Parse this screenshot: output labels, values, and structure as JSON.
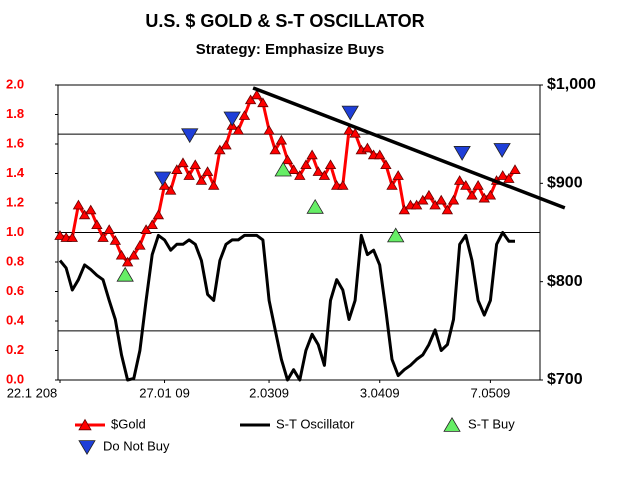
{
  "chart_data": {
    "type": "line",
    "title": "U.S. $ GOLD & S-T OSCILLATOR",
    "subtitle": "Strategy: Emphasize Buys",
    "x": [
      0,
      1,
      2,
      3,
      4,
      5,
      6,
      7,
      8,
      9,
      10,
      11,
      12,
      13,
      14,
      15,
      16,
      17,
      18,
      19,
      20,
      21,
      22,
      23,
      24,
      25,
      26,
      27,
      28,
      29,
      30,
      31,
      32,
      33,
      34,
      35,
      36,
      37,
      38,
      39,
      40,
      41,
      42,
      43,
      44,
      45,
      46,
      47,
      48,
      49,
      50,
      51,
      52,
      53,
      54,
      55,
      56,
      57,
      58,
      59,
      60,
      61,
      62,
      63,
      64,
      65,
      66,
      67,
      68,
      69,
      70,
      71,
      72,
      73,
      74
    ],
    "xlim": [
      0,
      74
    ],
    "xticks": [
      {
        "value": 0,
        "label": "22.1 208"
      },
      {
        "value": 17,
        "label": "27.01 09"
      },
      {
        "value": 34,
        "label": "2.0309"
      },
      {
        "value": 52,
        "label": "3.0409"
      },
      {
        "value": 70,
        "label": "7.0509"
      }
    ],
    "ylim": [
      0,
      2
    ],
    "yticks": [
      {
        "value": 0,
        "label": "0.0"
      },
      0.2,
      0.4,
      0.6,
      0.8,
      {
        "value": 1,
        "label": "1.0"
      },
      1.2,
      1.4,
      1.6,
      1.8,
      {
        "value": 2,
        "label": "2.0"
      }
    ],
    "y2lim": [
      700,
      1000
    ],
    "y2ticks": [
      {
        "value": 700,
        "label": "$700"
      },
      {
        "value": 800,
        "label": "$800"
      },
      {
        "value": 900,
        "label": "$900"
      },
      {
        "value": 1000,
        "label": "$1,000"
      }
    ],
    "y2grid": [
      750,
      850,
      950
    ],
    "series": [
      {
        "name": "$Gold",
        "color": "#ff0000",
        "axis": "y2",
        "marker": "triangle-up",
        "values": [
          847,
          845,
          845,
          878,
          868,
          873,
          858,
          845,
          853,
          842,
          827,
          820,
          827,
          837,
          853,
          858,
          868,
          898,
          893,
          914,
          921,
          908,
          919,
          903,
          912,
          898,
          934,
          939,
          959,
          954,
          969,
          985,
          990,
          982,
          954,
          934,
          944,
          924,
          914,
          908,
          919,
          929,
          912,
          908,
          919,
          898,
          898,
          954,
          951,
          934,
          936,
          929,
          929,
          919,
          898,
          908,
          873,
          878,
          878,
          883,
          888,
          878,
          883,
          873,
          883,
          903,
          898,
          888,
          898,
          885,
          888,
          903,
          908,
          905,
          914
        ]
      },
      {
        "name": "S-T Oscillator",
        "color": "#000000",
        "axis": "y",
        "values": [
          0.81,
          0.76,
          0.61,
          0.68,
          0.78,
          0.75,
          0.71,
          0.68,
          0.54,
          0.41,
          0.17,
          0,
          0.01,
          0.2,
          0.54,
          0.85,
          0.98,
          0.95,
          0.88,
          0.92,
          0.92,
          0.95,
          0.92,
          0.81,
          0.58,
          0.54,
          0.81,
          0.92,
          0.95,
          0.95,
          0.98,
          0.98,
          0.98,
          0.95,
          0.54,
          0.34,
          0.14,
          0,
          0.07,
          0,
          0.2,
          0.31,
          0.24,
          0.1,
          0.54,
          0.68,
          0.61,
          0.41,
          0.54,
          0.98,
          0.85,
          0.88,
          0.78,
          0.47,
          0.14,
          0.03,
          0.07,
          0.1,
          0.14,
          0.17,
          0.24,
          0.34,
          0.2,
          0.24,
          0.41,
          0.92,
          0.98,
          0.81,
          0.54,
          0.44,
          0.54,
          0.92,
          1.0,
          0.94,
          0.94
        ]
      },
      {
        "name": "S-T Buy",
        "color": "#66ee66",
        "axis": "y2",
        "marker": "triangle-up",
        "x": [
          10.6,
          36.3,
          41.5,
          54.6
        ],
        "values": [
          807,
          914,
          876,
          847
        ]
      },
      {
        "name": "Do Not Buy",
        "color": "#1f3fd8",
        "axis": "y2",
        "marker": "triangle-down",
        "x": [
          16.7,
          21.1,
          28,
          47.2,
          65.4,
          71.9
        ],
        "values": [
          905,
          949,
          966,
          972,
          931,
          934
        ]
      }
    ],
    "trend_line": {
      "x": [
        31.4,
        82.1
      ],
      "values": [
        997,
        875
      ],
      "axis": "y2",
      "color": "#000000"
    }
  }
}
